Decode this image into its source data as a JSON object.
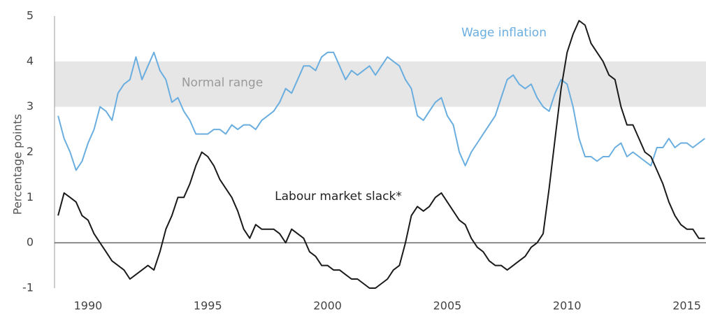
{
  "chart_data": {
    "type": "line",
    "y_label": "Percentage points",
    "x": [
      1988.75,
      1989,
      1989.25,
      1989.5,
      1989.75,
      1990,
      1990.25,
      1990.5,
      1990.75,
      1991,
      1991.25,
      1991.5,
      1991.75,
      1992,
      1992.25,
      1992.5,
      1992.75,
      1993,
      1993.25,
      1993.5,
      1993.75,
      1994,
      1994.25,
      1994.5,
      1994.75,
      1995,
      1995.25,
      1995.5,
      1995.75,
      1996,
      1996.25,
      1996.5,
      1996.75,
      1997,
      1997.25,
      1997.5,
      1997.75,
      1998,
      1998.25,
      1998.5,
      1998.75,
      1999,
      1999.25,
      1999.5,
      1999.75,
      2000,
      2000.25,
      2000.5,
      2000.75,
      2001,
      2001.25,
      2001.5,
      2001.75,
      2002,
      2002.25,
      2002.5,
      2002.75,
      2003,
      2003.25,
      2003.5,
      2003.75,
      2004,
      2004.25,
      2004.5,
      2004.75,
      2005,
      2005.25,
      2005.5,
      2005.75,
      2006,
      2006.25,
      2006.5,
      2006.75,
      2007,
      2007.25,
      2007.5,
      2007.75,
      2008,
      2008.25,
      2008.5,
      2008.75,
      2009,
      2009.25,
      2009.5,
      2009.75,
      2010,
      2010.25,
      2010.5,
      2010.75,
      2011,
      2011.25,
      2011.5,
      2011.75,
      2012,
      2012.25,
      2012.5,
      2012.75,
      2013,
      2013.25,
      2013.5,
      2013.75,
      2014,
      2014.25,
      2014.5,
      2014.75,
      2015,
      2015.25,
      2015.5,
      2015.75
    ],
    "series": [
      {
        "name": "Wage inflation",
        "color": "#6aaee0",
        "values": [
          2.8,
          2.3,
          2.0,
          1.6,
          1.8,
          2.2,
          2.5,
          3.0,
          2.9,
          2.7,
          3.3,
          3.5,
          3.6,
          4.1,
          3.6,
          3.9,
          4.2,
          3.8,
          3.6,
          3.1,
          3.2,
          2.9,
          2.7,
          2.4,
          2.4,
          2.4,
          2.5,
          2.5,
          2.4,
          2.6,
          2.5,
          2.6,
          2.6,
          2.5,
          2.7,
          2.8,
          2.9,
          3.1,
          3.4,
          3.3,
          3.6,
          3.9,
          3.9,
          3.8,
          4.1,
          4.2,
          4.2,
          3.9,
          3.6,
          3.8,
          3.7,
          3.8,
          3.9,
          3.7,
          3.9,
          4.1,
          4.0,
          3.9,
          3.6,
          3.4,
          2.8,
          2.7,
          2.9,
          3.1,
          3.2,
          2.8,
          2.6,
          2.0,
          1.7,
          2.0,
          2.2,
          2.4,
          2.6,
          2.8,
          3.2,
          3.6,
          3.7,
          3.5,
          3.4,
          3.5,
          3.2,
          3.0,
          2.9,
          3.3,
          3.6,
          3.5,
          3.0,
          2.3,
          1.9,
          1.9,
          1.8,
          1.9,
          1.9,
          2.1,
          2.2,
          1.9,
          2.0,
          1.9,
          1.8,
          1.7,
          2.1,
          2.1,
          2.3,
          2.1,
          2.2,
          2.2,
          2.1,
          2.2,
          2.3
        ]
      },
      {
        "name": "Labour market slack*",
        "color": "#1a1a1a",
        "values": [
          0.6,
          1.1,
          1.0,
          0.9,
          0.6,
          0.5,
          0.2,
          0.0,
          -0.2,
          -0.4,
          -0.5,
          -0.6,
          -0.8,
          -0.7,
          -0.6,
          -0.5,
          -0.6,
          -0.2,
          0.3,
          0.6,
          1.0,
          1.0,
          1.3,
          1.7,
          2.0,
          1.9,
          1.7,
          1.4,
          1.2,
          1.0,
          0.7,
          0.3,
          0.1,
          0.4,
          0.3,
          0.3,
          0.3,
          0.2,
          0.0,
          0.3,
          0.2,
          0.1,
          -0.2,
          -0.3,
          -0.5,
          -0.5,
          -0.6,
          -0.6,
          -0.7,
          -0.8,
          -0.8,
          -0.9,
          -1.0,
          -1.0,
          -0.9,
          -0.8,
          -0.6,
          -0.5,
          0.0,
          0.6,
          0.8,
          0.7,
          0.8,
          1.0,
          1.1,
          0.9,
          0.7,
          0.5,
          0.4,
          0.1,
          -0.1,
          -0.2,
          -0.4,
          -0.5,
          -0.5,
          -0.6,
          -0.5,
          -0.4,
          -0.3,
          -0.1,
          0.0,
          0.2,
          1.2,
          2.3,
          3.4,
          4.2,
          4.6,
          4.9,
          4.8,
          4.4,
          4.2,
          4.0,
          3.7,
          3.6,
          3.0,
          2.6,
          2.6,
          2.3,
          2.0,
          1.9,
          1.6,
          1.3,
          0.9,
          0.6,
          0.4,
          0.3,
          0.3,
          0.1,
          0.1
        ]
      }
    ],
    "bands": [
      {
        "label": "Normal range",
        "from": 3,
        "to": 4,
        "color": "#e6e6e6"
      }
    ],
    "xlim": [
      1988.6,
      2015.8
    ],
    "xticks": [
      1990,
      1995,
      2000,
      2005,
      2010,
      2015
    ],
    "ylim": [
      -1,
      5
    ],
    "yticks": [
      -1,
      0,
      1,
      2,
      3,
      4,
      5
    ],
    "grid": false
  }
}
